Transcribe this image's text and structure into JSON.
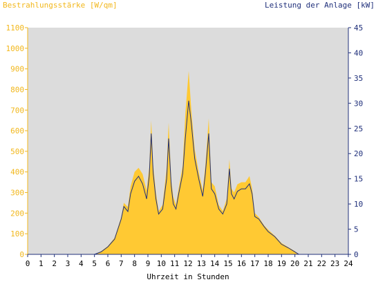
{
  "chart_data": {
    "type": "area",
    "y_left_label": "Bestrahlungsstärke [W/qm]",
    "y_right_label": "Leistung der Anlage [kW]",
    "xlabel": "Uhrzeit in Stunden",
    "xlim": [
      0,
      24
    ],
    "ylim_left": [
      0,
      1100
    ],
    "ylim_right": [
      0,
      45
    ],
    "x_ticks": [
      "0",
      "1",
      "2",
      "3",
      "4",
      "5",
      "6",
      "7",
      "8",
      "9",
      "10",
      "11",
      "12",
      "13",
      "14",
      "15",
      "16",
      "17",
      "18",
      "19",
      "20",
      "21",
      "22",
      "23",
      "24"
    ],
    "y_left_ticks": [
      "0",
      "100",
      "200",
      "300",
      "400",
      "500",
      "600",
      "700",
      "800",
      "900",
      "1000",
      "1100"
    ],
    "y_right_ticks": [
      "0",
      "5",
      "10",
      "15",
      "20",
      "25",
      "30",
      "35",
      "40",
      "45"
    ],
    "grid": false,
    "colors": {
      "plot_bg": "#dcdcdc",
      "irradiance": "#ffc933",
      "power": "#1f2f7a",
      "left_axis": "#f2b71b",
      "right_axis": "#1f2f7a"
    },
    "series": [
      {
        "name": "Bestrahlungsstärke [W/qm]",
        "axis": "left",
        "x": [
          0,
          5,
          5.5,
          6,
          6.5,
          7,
          7.2,
          7.5,
          7.7,
          8,
          8.3,
          8.6,
          8.9,
          9.1,
          9.25,
          9.4,
          9.6,
          9.8,
          10.1,
          10.4,
          10.55,
          10.75,
          10.9,
          11.1,
          11.3,
          11.6,
          11.8,
          12.05,
          12.25,
          12.5,
          12.8,
          13.1,
          13.3,
          13.55,
          13.75,
          14.0,
          14.3,
          14.6,
          14.9,
          15.1,
          15.25,
          15.45,
          15.7,
          16.0,
          16.3,
          16.6,
          16.8,
          17.0,
          17.3,
          17.7,
          18.0,
          18.5,
          19.0,
          19.5,
          20.0,
          20.3,
          24
        ],
        "y": [
          0,
          0,
          15,
          40,
          80,
          180,
          250,
          230,
          330,
          400,
          420,
          390,
          310,
          420,
          650,
          430,
          300,
          210,
          240,
          420,
          640,
          360,
          280,
          240,
          320,
          430,
          680,
          890,
          700,
          510,
          400,
          310,
          430,
          660,
          350,
          330,
          240,
          210,
          270,
          460,
          320,
          300,
          340,
          350,
          350,
          380,
          320,
          200,
          180,
          140,
          120,
          90,
          55,
          35,
          15,
          0,
          0
        ]
      },
      {
        "name": "Leistung der Anlage [kW]",
        "axis": "right",
        "x": [
          0,
          5,
          5.5,
          6,
          6.5,
          7,
          7.2,
          7.5,
          7.7,
          8,
          8.3,
          8.6,
          8.9,
          9.1,
          9.25,
          9.4,
          9.6,
          9.8,
          10.1,
          10.4,
          10.55,
          10.75,
          10.9,
          11.1,
          11.3,
          11.6,
          11.8,
          12.05,
          12.25,
          12.5,
          12.8,
          13.1,
          13.3,
          13.55,
          13.75,
          14.0,
          14.3,
          14.6,
          14.9,
          15.1,
          15.25,
          15.45,
          15.7,
          16.0,
          16.3,
          16.6,
          16.8,
          17.0,
          17.3,
          17.7,
          18.0,
          18.5,
          19.0,
          19.5,
          20.0,
          20.3,
          24
        ],
        "y": [
          0,
          0,
          0.5,
          1.5,
          3,
          7,
          9.5,
          8.5,
          12,
          14.5,
          15.5,
          14,
          11,
          15.5,
          24,
          16,
          11,
          8,
          9,
          15,
          23,
          13.5,
          10,
          9,
          12,
          16,
          23,
          30.5,
          26,
          19,
          15,
          11.5,
          16,
          24,
          13,
          12,
          9,
          8,
          10,
          17,
          12,
          11,
          12.5,
          13,
          13,
          14,
          12,
          7.5,
          7,
          5.5,
          4.5,
          3.5,
          2,
          1.3,
          0.5,
          0,
          0
        ]
      }
    ]
  }
}
